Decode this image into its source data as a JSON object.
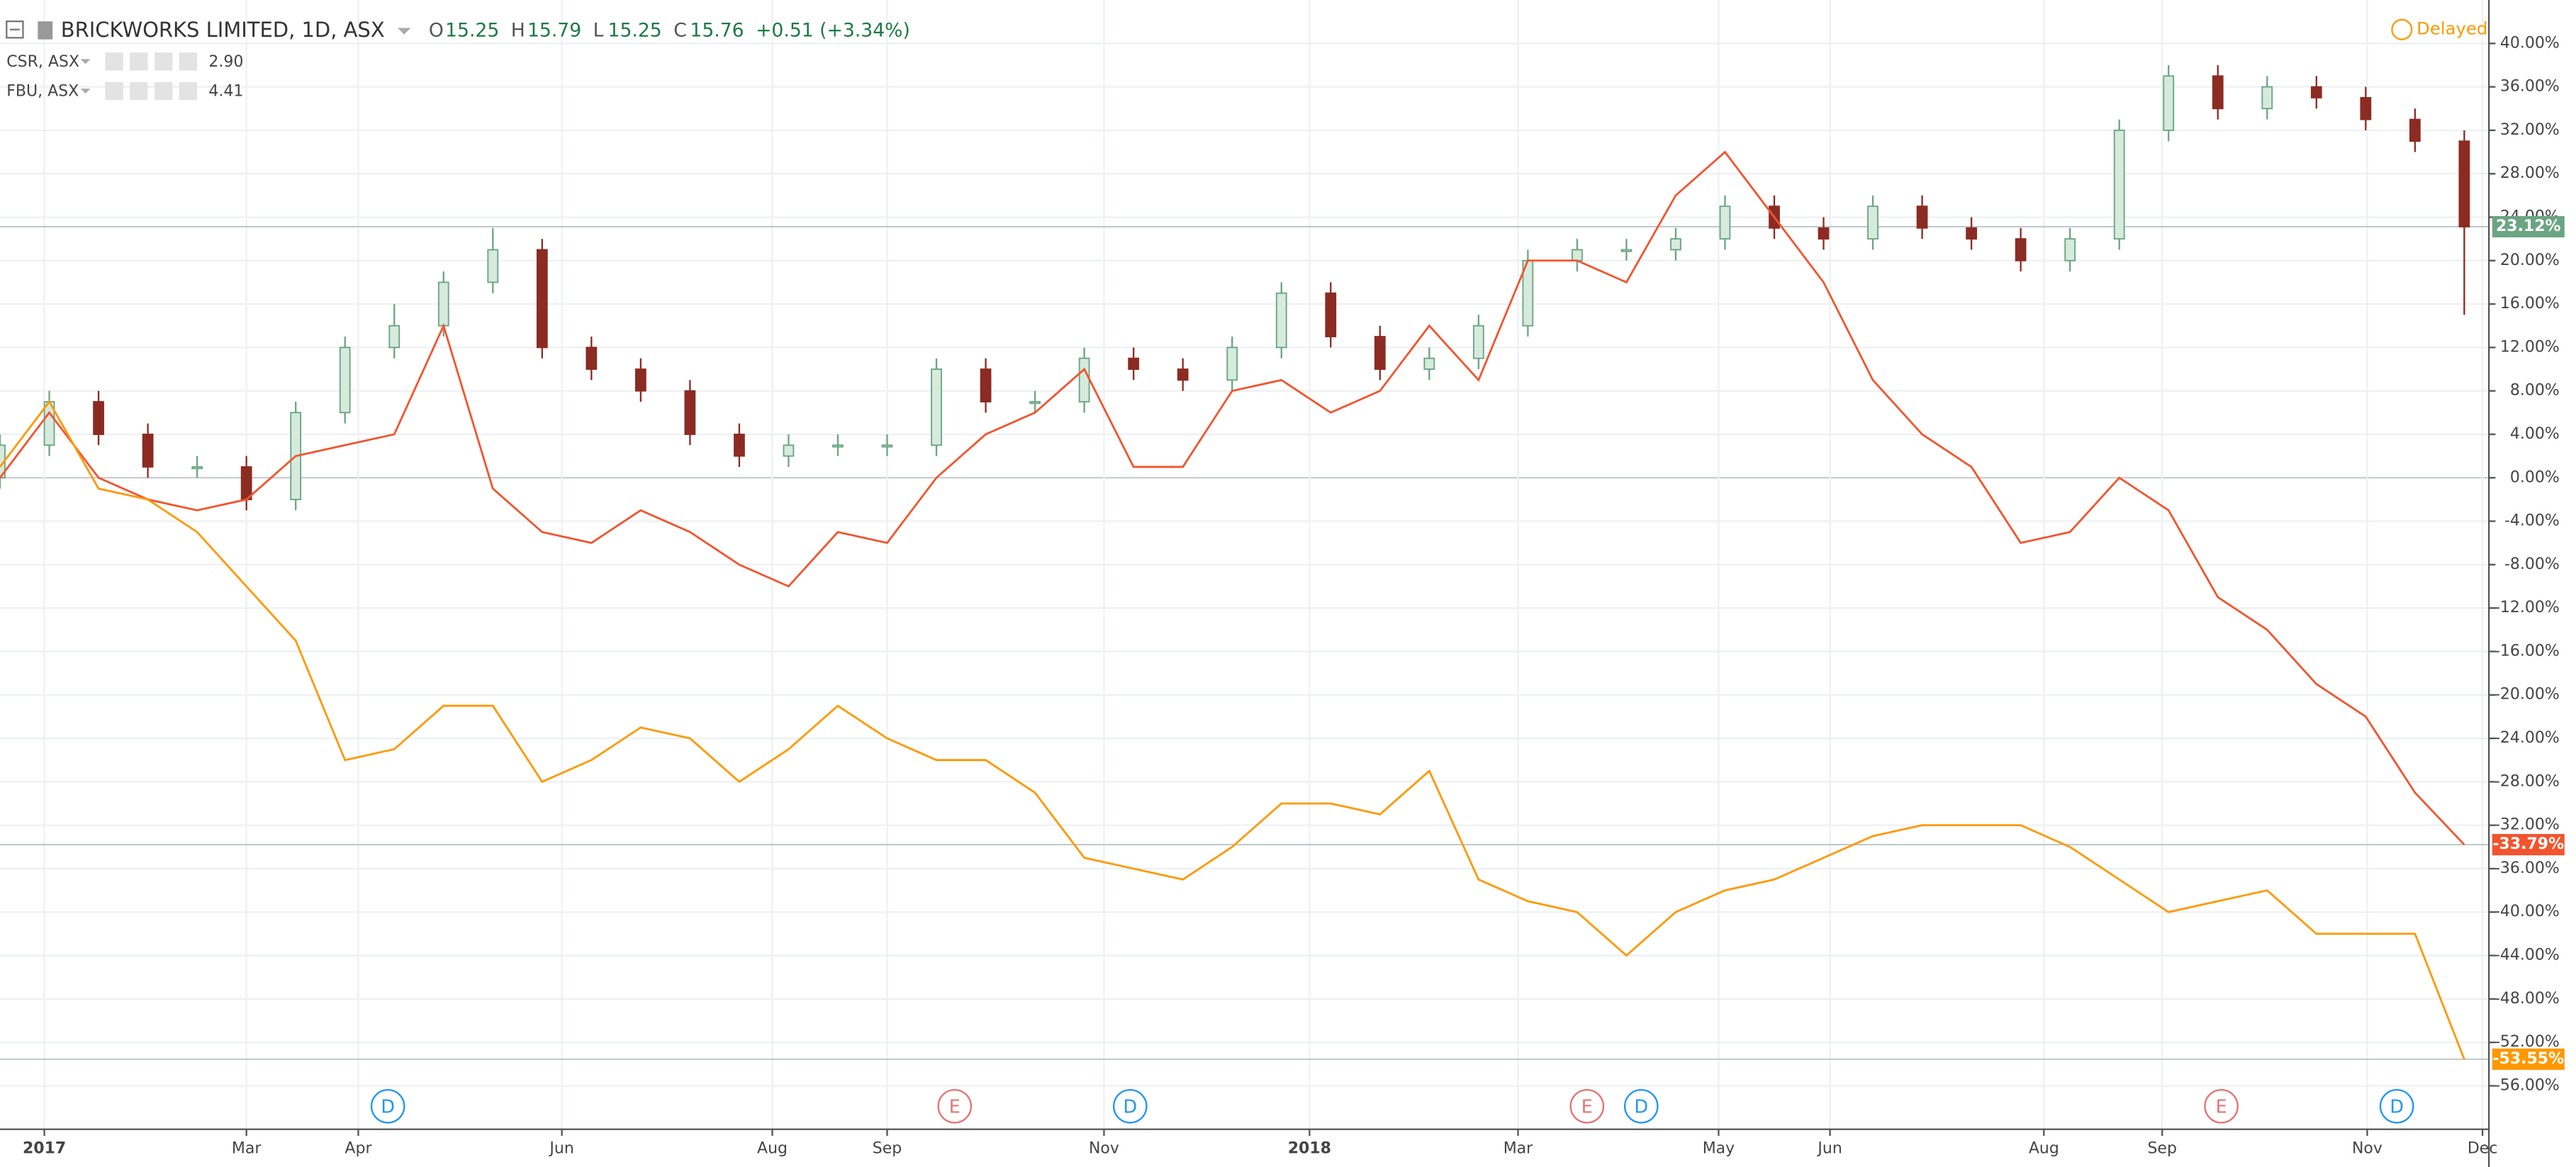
{
  "chart_data": {
    "type": "candlestick",
    "title": "BRICKWORKS LIMITED, 1D, ASX",
    "quote": {
      "open_label": "O",
      "open": "15.25",
      "high_label": "H",
      "high": "15.79",
      "low_label": "L",
      "low": "15.25",
      "close_label": "C",
      "close": "15.76",
      "change": "+0.51 (+3.34%)"
    },
    "status": "Delayed",
    "open": [
      0,
      3,
      7,
      4,
      1,
      1,
      -2,
      6,
      12,
      14,
      18,
      21,
      12,
      10,
      8,
      4,
      2,
      3,
      3,
      3,
      10,
      7,
      7,
      11,
      10,
      9,
      12,
      17,
      13,
      10,
      11,
      14,
      20,
      21,
      21,
      22,
      25,
      23,
      22,
      25,
      23,
      22,
      20,
      22,
      32,
      37,
      34,
      36,
      35,
      33,
      31
    ],
    "high": [
      4,
      8,
      8,
      5,
      2,
      2,
      7,
      13,
      16,
      19,
      23,
      22,
      13,
      11,
      9,
      5,
      4,
      4,
      4,
      11,
      11,
      8,
      12,
      12,
      11,
      13,
      18,
      18,
      14,
      12,
      15,
      21,
      22,
      22,
      23,
      26,
      26,
      24,
      26,
      26,
      24,
      23,
      23,
      33,
      38,
      38,
      37,
      37,
      36,
      34,
      32
    ],
    "low": [
      -1,
      2,
      3,
      0,
      0,
      -3,
      -3,
      5,
      11,
      13,
      17,
      11,
      9,
      7,
      3,
      1,
      1,
      2,
      2,
      2,
      6,
      6,
      6,
      9,
      8,
      8,
      11,
      12,
      9,
      9,
      10,
      13,
      19,
      20,
      20,
      21,
      22,
      21,
      21,
      22,
      21,
      19,
      19,
      21,
      31,
      33,
      33,
      34,
      32,
      30,
      15
    ],
    "close": [
      3,
      7,
      4,
      1,
      1,
      -2,
      6,
      12,
      14,
      18,
      21,
      12,
      10,
      8,
      4,
      2,
      3,
      3,
      3,
      10,
      7,
      7,
      11,
      10,
      9,
      12,
      17,
      13,
      10,
      11,
      14,
      20,
      21,
      21,
      22,
      25,
      23,
      22,
      25,
      23,
      22,
      20,
      22,
      32,
      37,
      34,
      36,
      35,
      33,
      31,
      23.12
    ],
    "up_color": "#6ba583",
    "down_color": "#8c2b22",
    "last_label": "23.12%",
    "series": [
      {
        "type": "line",
        "name": "CSR, ASX",
        "price": "2.90",
        "color": "#f2542d",
        "last_label": "-33.79%",
        "values": [
          0,
          6,
          0,
          -2,
          -3,
          -2,
          2,
          3,
          4,
          14,
          -1,
          -5,
          -6,
          -3,
          -5,
          -8,
          -10,
          -5,
          -6,
          0,
          4,
          6,
          10,
          1,
          1,
          8,
          9,
          6,
          8,
          14,
          9,
          20,
          20,
          18,
          26,
          30,
          24,
          18,
          9,
          4,
          1,
          -6,
          -5,
          0,
          -3,
          -11,
          -14,
          -19,
          -22,
          -29,
          -33.79
        ]
      },
      {
        "type": "line",
        "name": "FBU, ASX",
        "price": "4.41",
        "color": "#ff9800",
        "last_label": "-53.55%",
        "values": [
          1,
          7,
          -1,
          -2,
          -5,
          -10,
          -15,
          -26,
          -25,
          -21,
          -21,
          -28,
          -26,
          -23,
          -24,
          -28,
          -25,
          -21,
          -24,
          -26,
          -26,
          -29,
          -35,
          -36,
          -37,
          -34,
          -30,
          -30,
          -31,
          -27,
          -37,
          -39,
          -40,
          -44,
          -40,
          -38,
          -37,
          -35,
          -33,
          -32,
          -32,
          -32,
          -34,
          -37,
          -40,
          -39,
          -38,
          -42,
          -42,
          -42,
          -53.55
        ]
      }
    ],
    "xlim": [
      0,
      50.5
    ],
    "xticks": [
      {
        "value": 0.9,
        "label": "2017"
      },
      {
        "value": 5,
        "label": "Mar"
      },
      {
        "value": 7.27,
        "label": "Apr"
      },
      {
        "value": 11.4,
        "label": "Jun"
      },
      {
        "value": 15.67,
        "label": "Aug"
      },
      {
        "value": 18,
        "label": "Sep"
      },
      {
        "value": 22.4,
        "label": "Nov"
      },
      {
        "value": 26.57,
        "label": "2018"
      },
      {
        "value": 30.8,
        "label": "Mar"
      },
      {
        "value": 34.87,
        "label": "May"
      },
      {
        "value": 37.13,
        "label": "Jun"
      },
      {
        "value": 41.47,
        "label": "Aug"
      },
      {
        "value": 43.87,
        "label": "Sep"
      },
      {
        "value": 48.03,
        "label": "Nov"
      },
      {
        "value": 50.37,
        "label": "Dec"
      }
    ],
    "ylim": [
      -60,
      44
    ],
    "yticks": [
      {
        "value": 40,
        "label": "40.00%"
      },
      {
        "value": 36,
        "label": "36.00%"
      },
      {
        "value": 32,
        "label": "32.00%"
      },
      {
        "value": 28,
        "label": "28.00%"
      },
      {
        "value": 24,
        "label": "24.00%"
      },
      {
        "value": 20,
        "label": "20.00%"
      },
      {
        "value": 16,
        "label": "16.00%"
      },
      {
        "value": 12,
        "label": "12.00%"
      },
      {
        "value": 8,
        "label": "8.00%"
      },
      {
        "value": 4,
        "label": "4.00%"
      },
      {
        "value": 0,
        "label": "0.00%"
      },
      {
        "value": -4,
        "label": "-4.00%"
      },
      {
        "value": -8,
        "label": "-8.00%"
      },
      {
        "value": -12,
        "label": "-12.00%"
      },
      {
        "value": -16,
        "label": "-16.00%"
      },
      {
        "value": -20,
        "label": "-20.00%"
      },
      {
        "value": -24,
        "label": "-24.00%"
      },
      {
        "value": -28,
        "label": "-28.00%"
      },
      {
        "value": -32,
        "label": "-32.00%"
      },
      {
        "value": -36,
        "label": "-36.00%"
      },
      {
        "value": -40,
        "label": "-40.00%"
      },
      {
        "value": -44,
        "label": "-44.00%"
      },
      {
        "value": -48,
        "label": "-48.00%"
      },
      {
        "value": -52,
        "label": "-52.00%"
      },
      {
        "value": -56,
        "label": "-56.00%"
      }
    ],
    "grid": true,
    "events": [
      {
        "x": 7.87,
        "label": "D",
        "color": "#2196f3"
      },
      {
        "x": 19.37,
        "label": "E",
        "color": "#e57373"
      },
      {
        "x": 22.93,
        "label": "D",
        "color": "#2196f3"
      },
      {
        "x": 32.2,
        "label": "E",
        "color": "#e57373"
      },
      {
        "x": 33.3,
        "label": "D",
        "color": "#2196f3"
      },
      {
        "x": 45.07,
        "label": "E",
        "color": "#e57373"
      },
      {
        "x": 48.63,
        "label": "D",
        "color": "#2196f3"
      }
    ]
  }
}
